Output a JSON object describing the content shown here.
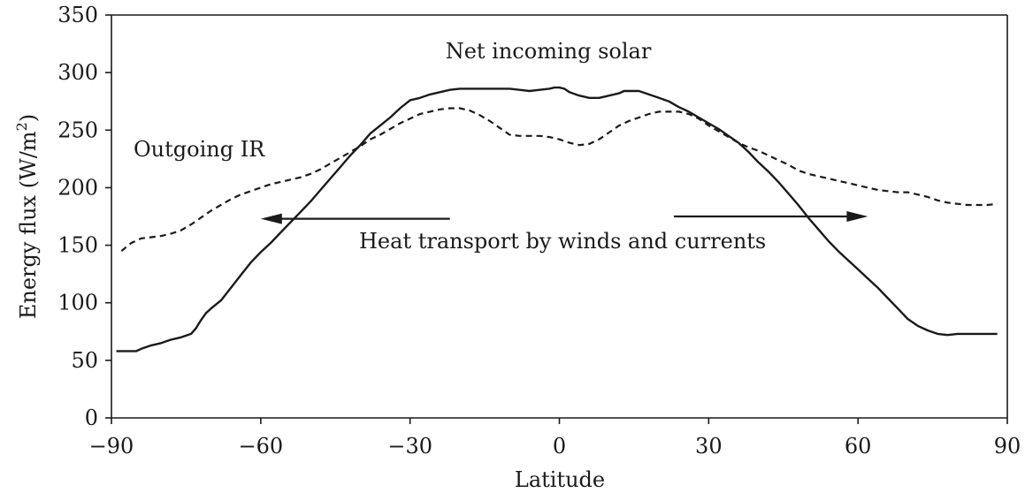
{
  "chart_data": {
    "type": "line",
    "title": "",
    "xlabel": "Latitude",
    "ylabel": "Energy flux (W/m",
    "ylabel_sup": "2",
    "ylabel_close": ")",
    "xlim": [
      -90,
      90
    ],
    "ylim": [
      0,
      350
    ],
    "x_ticks": [
      -90,
      -60,
      -30,
      0,
      30,
      60,
      90
    ],
    "x_tick_labels": [
      "−90",
      "−60",
      "−30",
      "0",
      "30",
      "60",
      "90"
    ],
    "y_ticks": [
      0,
      50,
      100,
      150,
      200,
      250,
      300,
      350
    ],
    "y_tick_labels": [
      "0",
      "50",
      "100",
      "150",
      "200",
      "250",
      "300",
      "350"
    ],
    "grid": false,
    "series": [
      {
        "name": "Net incoming solar",
        "style": "solid",
        "x": [
          -89,
          -86,
          -85,
          -84,
          -82,
          -80,
          -78,
          -76,
          -74,
          -73,
          -72,
          -71,
          -70,
          -68,
          -66,
          -64,
          -62,
          -60,
          -58,
          -56,
          -54,
          -52,
          -50,
          -48,
          -46,
          -44,
          -42,
          -40,
          -38,
          -36,
          -34,
          -32,
          -30,
          -28,
          -26,
          -24,
          -22,
          -20,
          -18,
          -17,
          -16,
          -15,
          -14,
          -12,
          -10,
          -8,
          -6,
          -4,
          -2,
          -1,
          0,
          1,
          2,
          4,
          6,
          8,
          10,
          12,
          13,
          14,
          16,
          18,
          20,
          22,
          24,
          26,
          28,
          30,
          32,
          34,
          36,
          38,
          40,
          42,
          44,
          46,
          48,
          50,
          52,
          54,
          56,
          58,
          60,
          62,
          64,
          66,
          68,
          70,
          72,
          74,
          76,
          78,
          80,
          82,
          84,
          86,
          88
        ],
        "values": [
          58,
          58,
          58,
          60,
          63,
          65,
          68,
          70,
          73,
          78,
          85,
          91,
          95,
          102,
          113,
          124,
          135,
          144,
          152,
          161,
          170,
          179,
          188,
          198,
          208,
          218,
          228,
          237,
          247,
          254,
          261,
          269,
          276,
          278,
          281,
          283,
          285,
          286,
          286,
          286,
          286,
          286,
          286,
          286,
          286,
          285,
          284,
          285,
          286,
          287,
          287,
          286,
          283,
          280,
          278,
          278,
          280,
          282,
          284,
          284,
          284,
          281,
          278,
          275,
          270,
          266,
          261,
          256,
          251,
          245,
          239,
          231,
          222,
          214,
          205,
          195,
          185,
          174,
          164,
          154,
          145,
          137,
          129,
          121,
          113,
          104,
          95,
          86,
          80,
          76,
          73,
          72,
          73,
          73,
          73,
          73,
          73
        ]
      },
      {
        "name": "Outgoing IR",
        "style": "dashed",
        "x": [
          -88,
          -86,
          -84,
          -82,
          -80,
          -78,
          -76,
          -74,
          -72,
          -70,
          -68,
          -66,
          -64,
          -62,
          -60,
          -58,
          -56,
          -54,
          -52,
          -50,
          -48,
          -46,
          -44,
          -42,
          -40,
          -38,
          -36,
          -34,
          -32,
          -30,
          -28,
          -26,
          -24,
          -22,
          -20,
          -18,
          -16,
          -14,
          -12,
          -10,
          -8,
          -6,
          -4,
          -2,
          0,
          2,
          4,
          6,
          8,
          10,
          12,
          14,
          16,
          18,
          20,
          22,
          24,
          26,
          28,
          30,
          32,
          34,
          36,
          38,
          40,
          42,
          44,
          46,
          48,
          50,
          52,
          54,
          56,
          58,
          60,
          62,
          64,
          66,
          68,
          70,
          72,
          74,
          76,
          78,
          80,
          82,
          84,
          86,
          88
        ],
        "values": [
          145,
          152,
          156,
          157,
          158,
          160,
          163,
          168,
          174,
          180,
          185,
          190,
          194,
          197,
          200,
          203,
          205,
          207,
          209,
          212,
          216,
          221,
          226,
          231,
          236,
          242,
          246,
          251,
          256,
          260,
          264,
          266,
          268,
          269,
          269,
          267,
          263,
          258,
          252,
          246,
          245,
          245,
          245,
          244,
          242,
          239,
          237,
          238,
          242,
          248,
          254,
          258,
          261,
          264,
          266,
          266,
          266,
          264,
          260,
          254,
          249,
          244,
          239,
          235,
          232,
          228,
          224,
          220,
          215,
          212,
          210,
          208,
          206,
          204,
          202,
          200,
          198,
          197,
          196,
          196,
          194,
          192,
          189,
          187,
          186,
          185,
          185,
          185,
          186
        ]
      }
    ],
    "annotations": {
      "solar_label": "Net incoming solar",
      "ir_label": "Outgoing IR",
      "transport_label": "Heat transport by winds and currents"
    },
    "arrows": [
      {
        "from": [
          -22,
          173
        ],
        "to": [
          -60,
          173
        ],
        "direction": "left"
      },
      {
        "from": [
          23,
          175
        ],
        "to": [
          62,
          175
        ],
        "direction": "right"
      }
    ]
  }
}
